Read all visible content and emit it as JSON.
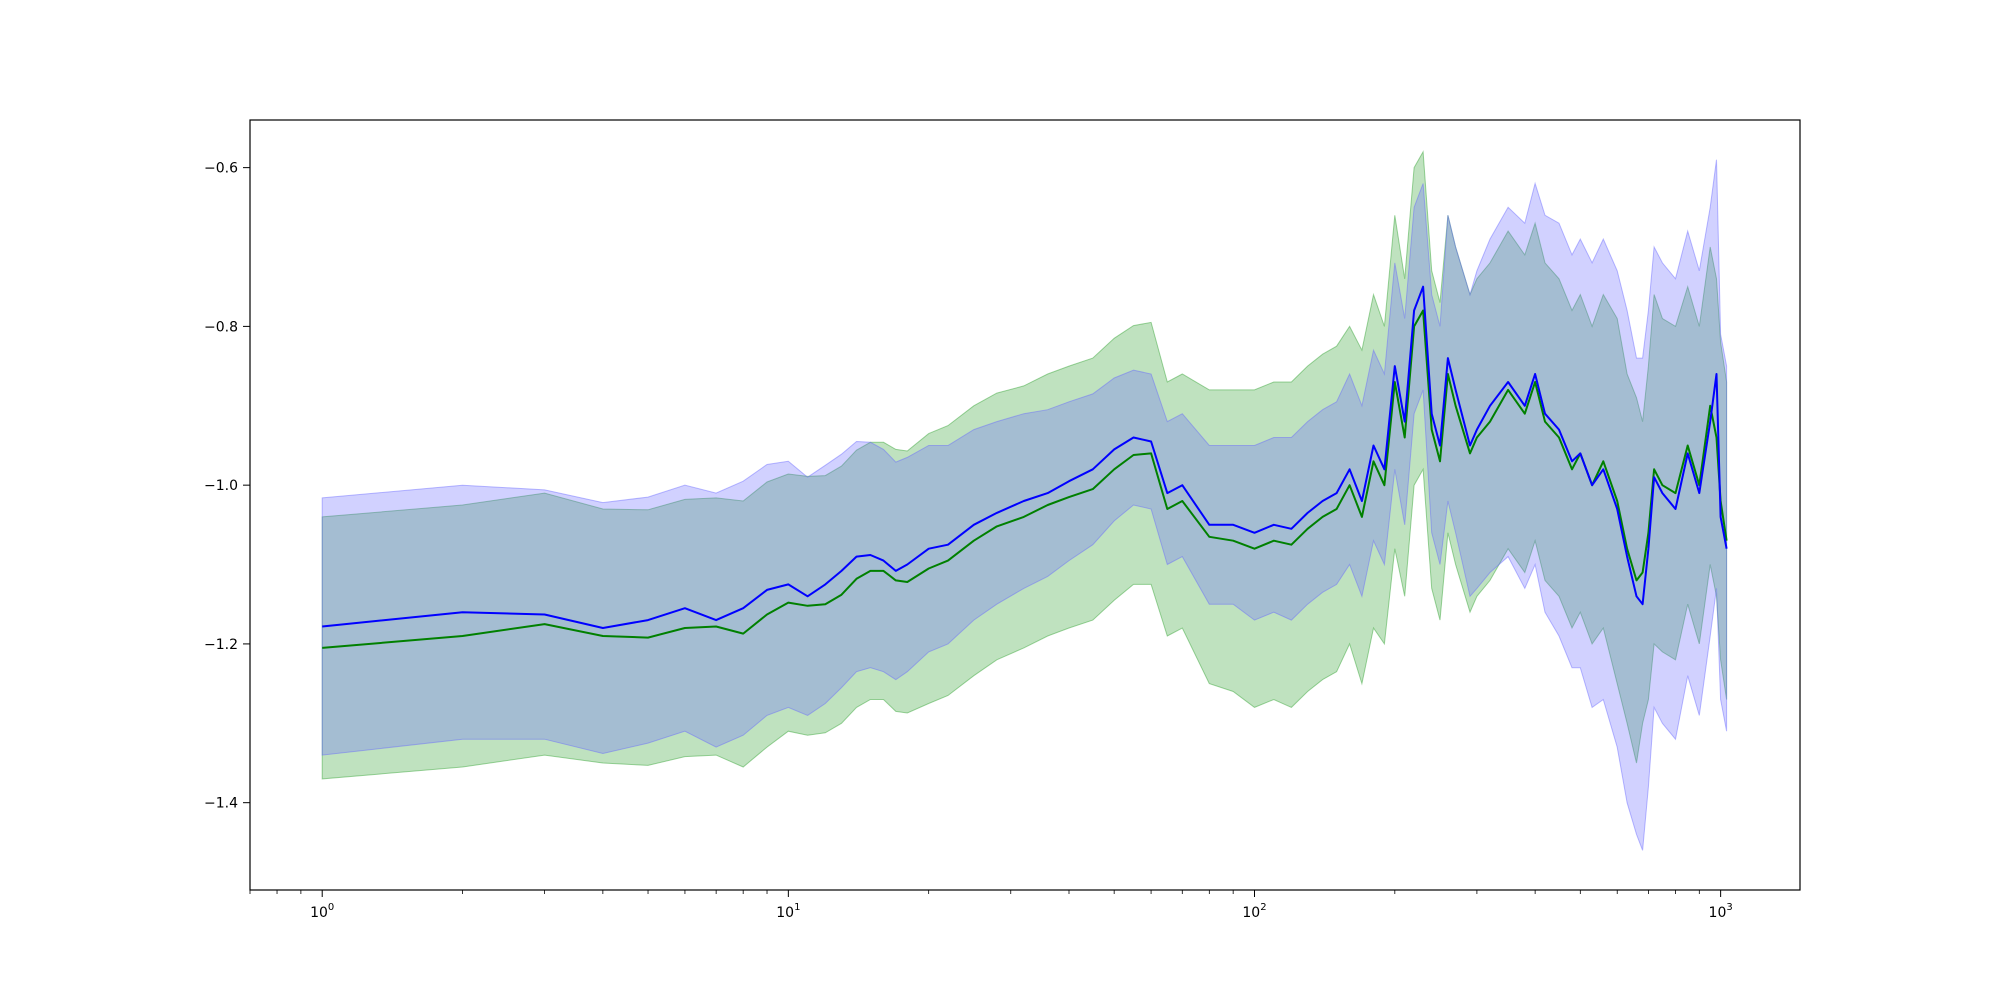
{
  "chart_data": {
    "type": "line",
    "title": "",
    "xlabel": "",
    "ylabel": "",
    "x_scale": "log",
    "xlim": [
      0.7,
      1480
    ],
    "ylim": [
      -1.51,
      -0.54
    ],
    "grid": false,
    "legend": "none",
    "x_tick_labels": [
      {
        "value": 1,
        "base": "10",
        "exp": "0"
      },
      {
        "value": 10,
        "base": "10",
        "exp": "1"
      },
      {
        "value": 100,
        "base": "10",
        "exp": "2"
      },
      {
        "value": 1000,
        "base": "10",
        "exp": "3"
      }
    ],
    "y_ticks": [
      -1.4,
      -1.2,
      -1.0,
      -0.8,
      -0.6
    ],
    "y_tick_labels": [
      "−1.4",
      "−1.2",
      "−1.0",
      "−0.8",
      "−0.6"
    ],
    "series": [
      {
        "color": "#008000",
        "band_color": "#2ca02c",
        "x": [
          1,
          2,
          3,
          4,
          5,
          6,
          7,
          8,
          9,
          10,
          11,
          12,
          13,
          14,
          15,
          16,
          17,
          18,
          20,
          22,
          25,
          28,
          32,
          36,
          40,
          45,
          50,
          55,
          60,
          65,
          70,
          80,
          90,
          100,
          110,
          120,
          130,
          140,
          150,
          160,
          170,
          180,
          190,
          200,
          210,
          220,
          230,
          240,
          250,
          260,
          270,
          290,
          300,
          320,
          350,
          380,
          400,
          420,
          450,
          480,
          500,
          530,
          560,
          600,
          630,
          660,
          680,
          700,
          720,
          750,
          800,
          850,
          900,
          950,
          980,
          1000,
          1030
        ],
        "y": [
          -1.205,
          -1.19,
          -1.175,
          -1.19,
          -1.192,
          -1.18,
          -1.178,
          -1.187,
          -1.163,
          -1.148,
          -1.152,
          -1.15,
          -1.138,
          -1.118,
          -1.108,
          -1.108,
          -1.12,
          -1.122,
          -1.105,
          -1.095,
          -1.07,
          -1.052,
          -1.04,
          -1.025,
          -1.015,
          -1.005,
          -0.98,
          -0.962,
          -0.96,
          -1.03,
          -1.02,
          -1.065,
          -1.07,
          -1.08,
          -1.07,
          -1.075,
          -1.055,
          -1.04,
          -1.03,
          -1.0,
          -1.04,
          -0.97,
          -1.0,
          -0.87,
          -0.94,
          -0.8,
          -0.78,
          -0.93,
          -0.97,
          -0.86,
          -0.9,
          -0.96,
          -0.94,
          -0.92,
          -0.88,
          -0.91,
          -0.87,
          -0.92,
          -0.94,
          -0.98,
          -0.96,
          -1.0,
          -0.97,
          -1.02,
          -1.08,
          -1.12,
          -1.11,
          -1.06,
          -0.98,
          -1.0,
          -1.01,
          -0.95,
          -1.0,
          -0.9,
          -0.94,
          -1.02,
          -1.07
        ],
        "lower": [
          -1.37,
          -1.355,
          -1.34,
          -1.35,
          -1.353,
          -1.342,
          -1.34,
          -1.355,
          -1.33,
          -1.31,
          -1.315,
          -1.312,
          -1.3,
          -1.28,
          -1.27,
          -1.27,
          -1.285,
          -1.287,
          -1.275,
          -1.265,
          -1.24,
          -1.22,
          -1.205,
          -1.19,
          -1.18,
          -1.17,
          -1.145,
          -1.125,
          -1.125,
          -1.19,
          -1.18,
          -1.25,
          -1.26,
          -1.28,
          -1.27,
          -1.28,
          -1.26,
          -1.245,
          -1.235,
          -1.2,
          -1.25,
          -1.18,
          -1.2,
          -1.08,
          -1.14,
          -1.0,
          -0.98,
          -1.13,
          -1.17,
          -1.06,
          -1.1,
          -1.16,
          -1.14,
          -1.12,
          -1.08,
          -1.11,
          -1.07,
          -1.12,
          -1.14,
          -1.18,
          -1.16,
          -1.2,
          -1.18,
          -1.25,
          -1.3,
          -1.35,
          -1.3,
          -1.27,
          -1.2,
          -1.21,
          -1.22,
          -1.15,
          -1.2,
          -1.1,
          -1.14,
          -1.22,
          -1.27
        ],
        "upper": [
          -1.04,
          -1.025,
          -1.01,
          -1.03,
          -1.031,
          -1.018,
          -1.016,
          -1.02,
          -0.996,
          -0.986,
          -0.989,
          -0.988,
          -0.976,
          -0.956,
          -0.946,
          -0.946,
          -0.955,
          -0.957,
          -0.935,
          -0.925,
          -0.9,
          -0.884,
          -0.875,
          -0.86,
          -0.85,
          -0.84,
          -0.815,
          -0.799,
          -0.795,
          -0.87,
          -0.86,
          -0.88,
          -0.88,
          -0.88,
          -0.87,
          -0.87,
          -0.85,
          -0.835,
          -0.825,
          -0.8,
          -0.83,
          -0.76,
          -0.8,
          -0.66,
          -0.74,
          -0.6,
          -0.58,
          -0.73,
          -0.77,
          -0.66,
          -0.7,
          -0.76,
          -0.74,
          -0.72,
          -0.68,
          -0.71,
          -0.67,
          -0.72,
          -0.74,
          -0.78,
          -0.76,
          -0.8,
          -0.76,
          -0.79,
          -0.86,
          -0.89,
          -0.92,
          -0.85,
          -0.76,
          -0.79,
          -0.8,
          -0.75,
          -0.8,
          -0.7,
          -0.74,
          -0.82,
          -0.87
        ]
      },
      {
        "color": "#0000ff",
        "band_color": "#6666ff",
        "x": [
          1,
          2,
          3,
          4,
          5,
          6,
          7,
          8,
          9,
          10,
          11,
          12,
          13,
          14,
          15,
          16,
          17,
          18,
          20,
          22,
          25,
          28,
          32,
          36,
          40,
          45,
          50,
          55,
          60,
          65,
          70,
          80,
          90,
          100,
          110,
          120,
          130,
          140,
          150,
          160,
          170,
          180,
          190,
          200,
          210,
          220,
          230,
          240,
          250,
          260,
          270,
          290,
          300,
          320,
          350,
          380,
          400,
          420,
          450,
          480,
          500,
          530,
          560,
          600,
          630,
          660,
          680,
          700,
          720,
          750,
          800,
          850,
          900,
          950,
          980,
          1000,
          1030
        ],
        "y": [
          -1.178,
          -1.16,
          -1.163,
          -1.18,
          -1.17,
          -1.155,
          -1.17,
          -1.155,
          -1.132,
          -1.125,
          -1.14,
          -1.125,
          -1.108,
          -1.09,
          -1.088,
          -1.095,
          -1.108,
          -1.1,
          -1.08,
          -1.075,
          -1.05,
          -1.035,
          -1.02,
          -1.01,
          -0.995,
          -0.98,
          -0.955,
          -0.94,
          -0.945,
          -1.01,
          -1.0,
          -1.05,
          -1.05,
          -1.06,
          -1.05,
          -1.055,
          -1.035,
          -1.02,
          -1.01,
          -0.98,
          -1.02,
          -0.95,
          -0.98,
          -0.85,
          -0.92,
          -0.78,
          -0.75,
          -0.91,
          -0.95,
          -0.84,
          -0.88,
          -0.95,
          -0.93,
          -0.9,
          -0.87,
          -0.9,
          -0.86,
          -0.91,
          -0.93,
          -0.97,
          -0.96,
          -1.0,
          -0.98,
          -1.03,
          -1.09,
          -1.14,
          -1.15,
          -1.08,
          -0.99,
          -1.01,
          -1.03,
          -0.96,
          -1.01,
          -0.92,
          -0.86,
          -1.04,
          -1.08
        ],
        "lower": [
          -1.34,
          -1.32,
          -1.32,
          -1.338,
          -1.325,
          -1.31,
          -1.33,
          -1.315,
          -1.29,
          -1.28,
          -1.29,
          -1.275,
          -1.255,
          -1.235,
          -1.23,
          -1.235,
          -1.245,
          -1.235,
          -1.21,
          -1.2,
          -1.17,
          -1.15,
          -1.13,
          -1.115,
          -1.095,
          -1.075,
          -1.045,
          -1.025,
          -1.03,
          -1.1,
          -1.09,
          -1.15,
          -1.15,
          -1.17,
          -1.16,
          -1.17,
          -1.15,
          -1.135,
          -1.125,
          -1.1,
          -1.14,
          -1.07,
          -1.1,
          -0.98,
          -1.05,
          -0.91,
          -0.88,
          -1.06,
          -1.1,
          -1.02,
          -1.06,
          -1.14,
          -1.13,
          -1.11,
          -1.09,
          -1.13,
          -1.1,
          -1.16,
          -1.19,
          -1.23,
          -1.23,
          -1.28,
          -1.27,
          -1.33,
          -1.4,
          -1.44,
          -1.46,
          -1.38,
          -1.28,
          -1.3,
          -1.32,
          -1.24,
          -1.29,
          -1.19,
          -1.13,
          -1.27,
          -1.31
        ],
        "upper": [
          -1.016,
          -1.0,
          -1.006,
          -1.022,
          -1.015,
          -1.0,
          -1.01,
          -0.995,
          -0.974,
          -0.97,
          -0.99,
          -0.975,
          -0.961,
          -0.945,
          -0.946,
          -0.955,
          -0.971,
          -0.965,
          -0.95,
          -0.95,
          -0.93,
          -0.92,
          -0.91,
          -0.905,
          -0.895,
          -0.885,
          -0.865,
          -0.855,
          -0.86,
          -0.92,
          -0.91,
          -0.95,
          -0.95,
          -0.95,
          -0.94,
          -0.94,
          -0.92,
          -0.905,
          -0.895,
          -0.86,
          -0.9,
          -0.83,
          -0.86,
          -0.72,
          -0.79,
          -0.65,
          -0.62,
          -0.76,
          -0.8,
          -0.66,
          -0.7,
          -0.76,
          -0.73,
          -0.69,
          -0.65,
          -0.67,
          -0.62,
          -0.66,
          -0.67,
          -0.71,
          -0.69,
          -0.72,
          -0.69,
          -0.73,
          -0.78,
          -0.84,
          -0.84,
          -0.78,
          -0.7,
          -0.72,
          -0.74,
          -0.68,
          -0.73,
          -0.65,
          -0.59,
          -0.81,
          -0.85
        ]
      }
    ]
  }
}
